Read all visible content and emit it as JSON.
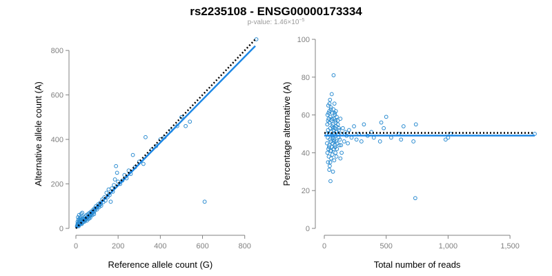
{
  "title": "rs2235108 - ENSG00000173334",
  "subtitle": "p-value: 1.46×10",
  "subtitle_exp": "−5",
  "colors": {
    "point": "#2a8bd0",
    "fit": "#1e88e5",
    "reference": "#000000",
    "axis": "#808080"
  },
  "chart_data": [
    {
      "type": "scatter",
      "xlabel": "Reference allele count (G)",
      "ylabel": "Alternative allele count (A)",
      "xlim": [
        0,
        850
      ],
      "ylim": [
        0,
        850
      ],
      "xticks": [
        0,
        200,
        400,
        600,
        800
      ],
      "yticks": [
        0,
        200,
        400,
        600,
        800
      ],
      "xtick_labels": [
        "0",
        "200",
        "400",
        "600",
        "800"
      ],
      "ytick_labels": [
        "0",
        "200",
        "400",
        "600",
        "800"
      ],
      "grid": false,
      "lines": [
        {
          "kind": "fit",
          "style": "solid",
          "x": [
            0,
            850
          ],
          "y": [
            0,
            820
          ]
        },
        {
          "kind": "reference",
          "style": "dotted",
          "x": [
            0,
            850
          ],
          "y": [
            0,
            850
          ]
        }
      ],
      "points": [
        [
          6,
          12
        ],
        [
          8,
          20
        ],
        [
          10,
          15
        ],
        [
          12,
          25
        ],
        [
          15,
          18
        ],
        [
          14,
          30
        ],
        [
          18,
          22
        ],
        [
          20,
          35
        ],
        [
          22,
          28
        ],
        [
          25,
          40
        ],
        [
          28,
          20
        ],
        [
          30,
          45
        ],
        [
          32,
          34
        ],
        [
          35,
          30
        ],
        [
          38,
          50
        ],
        [
          40,
          42
        ],
        [
          42,
          38
        ],
        [
          45,
          55
        ],
        [
          48,
          46
        ],
        [
          50,
          60
        ],
        [
          52,
          35
        ],
        [
          55,
          50
        ],
        [
          58,
          65
        ],
        [
          60,
          55
        ],
        [
          62,
          48
        ],
        [
          65,
          70
        ],
        [
          68,
          62
        ],
        [
          70,
          58
        ],
        [
          72,
          75
        ],
        [
          75,
          68
        ],
        [
          78,
          60
        ],
        [
          80,
          82
        ],
        [
          85,
          72
        ],
        [
          88,
          90
        ],
        [
          90,
          80
        ],
        [
          95,
          100
        ],
        [
          100,
          85
        ],
        [
          105,
          108
        ],
        [
          110,
          95
        ],
        [
          115,
          115
        ],
        [
          120,
          102
        ],
        [
          125,
          130
        ],
        [
          130,
          118
        ],
        [
          135,
          140
        ],
        [
          140,
          125
        ],
        [
          145,
          160
        ],
        [
          150,
          140
        ],
        [
          155,
          175
        ],
        [
          160,
          150
        ],
        [
          165,
          120
        ],
        [
          170,
          180
        ],
        [
          175,
          165
        ],
        [
          180,
          195
        ],
        [
          185,
          220
        ],
        [
          190,
          280
        ],
        [
          195,
          250
        ],
        [
          200,
          210
        ],
        [
          210,
          200
        ],
        [
          220,
          215
        ],
        [
          230,
          240
        ],
        [
          240,
          225
        ],
        [
          250,
          260
        ],
        [
          260,
          245
        ],
        [
          270,
          330
        ],
        [
          280,
          275
        ],
        [
          300,
          300
        ],
        [
          320,
          290
        ],
        [
          330,
          410
        ],
        [
          360,
          355
        ],
        [
          380,
          370
        ],
        [
          400,
          400
        ],
        [
          420,
          410
        ],
        [
          450,
          440
        ],
        [
          480,
          460
        ],
        [
          500,
          500
        ],
        [
          520,
          460
        ],
        [
          540,
          480
        ],
        [
          610,
          120
        ],
        [
          855,
          850
        ],
        [
          10,
          50
        ],
        [
          15,
          60
        ],
        [
          20,
          48
        ],
        [
          25,
          65
        ],
        [
          30,
          70
        ],
        [
          12,
          40
        ],
        [
          18,
          42
        ],
        [
          8,
          30
        ],
        [
          5,
          10
        ],
        [
          7,
          14
        ],
        [
          9,
          18
        ],
        [
          11,
          22
        ],
        [
          13,
          10
        ],
        [
          16,
          15
        ],
        [
          19,
          26
        ],
        [
          21,
          20
        ],
        [
          24,
          32
        ],
        [
          27,
          24
        ],
        [
          33,
          28
        ],
        [
          36,
          44
        ],
        [
          40,
          30
        ],
        [
          44,
          36
        ],
        [
          47,
          40
        ],
        [
          52,
          46
        ],
        [
          56,
          52
        ],
        [
          60,
          42
        ],
        [
          64,
          56
        ],
        [
          68,
          48
        ],
        [
          74,
          66
        ],
        [
          78,
          72
        ],
        [
          82,
          76
        ],
        [
          86,
          64
        ],
        [
          92,
          88
        ],
        [
          98,
          92
        ],
        [
          102,
          96
        ],
        [
          108,
          102
        ],
        [
          112,
          104
        ],
        [
          118,
          110
        ]
      ]
    },
    {
      "type": "scatter",
      "xlabel": "Total number of reads",
      "ylabel": "Percentage alternative (A)",
      "xlim": [
        0,
        1700
      ],
      "ylim": [
        0,
        100
      ],
      "xticks": [
        0,
        500,
        1000,
        1500
      ],
      "yticks": [
        0,
        20,
        40,
        60,
        80,
        100
      ],
      "xtick_labels": [
        "0",
        "500",
        "1,000",
        "1,500"
      ],
      "ytick_labels": [
        "0",
        "20",
        "40",
        "60",
        "80",
        "100"
      ],
      "grid": false,
      "lines": [
        {
          "kind": "fit",
          "style": "solid",
          "x": [
            0,
            1700
          ],
          "y": [
            49.1,
            49.1
          ]
        },
        {
          "kind": "reference",
          "style": "dotted",
          "x": [
            0,
            1700
          ],
          "y": [
            50.5,
            50.5
          ]
        }
      ],
      "points": [
        [
          20,
          50
        ],
        [
          22,
          45
        ],
        [
          24,
          55
        ],
        [
          25,
          40
        ],
        [
          26,
          60
        ],
        [
          28,
          48
        ],
        [
          30,
          52
        ],
        [
          30,
          35
        ],
        [
          32,
          65
        ],
        [
          33,
          42
        ],
        [
          35,
          58
        ],
        [
          36,
          38
        ],
        [
          38,
          50
        ],
        [
          40,
          62
        ],
        [
          40,
          44
        ],
        [
          42,
          56
        ],
        [
          44,
          33
        ],
        [
          45,
          47
        ],
        [
          46,
          68
        ],
        [
          48,
          53
        ],
        [
          50,
          41
        ],
        [
          50,
          59
        ],
        [
          52,
          46
        ],
        [
          54,
          64
        ],
        [
          55,
          37
        ],
        [
          56,
          51
        ],
        [
          58,
          57
        ],
        [
          60,
          43
        ],
        [
          60,
          71
        ],
        [
          62,
          49
        ],
        [
          64,
          54
        ],
        [
          65,
          39
        ],
        [
          66,
          61
        ],
        [
          68,
          45
        ],
        [
          70,
          55
        ],
        [
          70,
          30
        ],
        [
          72,
          48
        ],
        [
          74,
          63
        ],
        [
          75,
          42
        ],
        [
          76,
          52
        ],
        [
          78,
          58
        ],
        [
          80,
          36
        ],
        [
          80,
          47
        ],
        [
          82,
          66
        ],
        [
          84,
          50
        ],
        [
          85,
          44
        ],
        [
          86,
          60
        ],
        [
          88,
          53
        ],
        [
          90,
          40
        ],
        [
          90,
          57
        ],
        [
          92,
          49
        ],
        [
          94,
          62
        ],
        [
          95,
          46
        ],
        [
          96,
          54
        ],
        [
          98,
          38
        ],
        [
          100,
          51
        ],
        [
          100,
          59
        ],
        [
          105,
          45
        ],
        [
          110,
          55
        ],
        [
          115,
          48
        ],
        [
          120,
          52
        ],
        [
          125,
          47
        ],
        [
          130,
          58
        ],
        [
          135,
          44
        ],
        [
          140,
          50
        ],
        [
          150,
          53
        ],
        [
          160,
          46
        ],
        [
          170,
          51
        ],
        [
          180,
          49
        ],
        [
          190,
          45
        ],
        [
          200,
          52
        ],
        [
          220,
          48
        ],
        [
          240,
          54
        ],
        [
          260,
          47
        ],
        [
          280,
          50
        ],
        [
          300,
          46
        ],
        [
          320,
          55
        ],
        [
          350,
          49
        ],
        [
          380,
          51
        ],
        [
          400,
          48
        ],
        [
          450,
          46
        ],
        [
          460,
          56
        ],
        [
          480,
          53
        ],
        [
          500,
          59
        ],
        [
          540,
          48
        ],
        [
          600,
          50
        ],
        [
          620,
          47
        ],
        [
          640,
          54
        ],
        [
          720,
          46
        ],
        [
          735,
          16
        ],
        [
          740,
          55
        ],
        [
          980,
          47
        ],
        [
          1000,
          48
        ],
        [
          1020,
          50
        ],
        [
          1700,
          50
        ],
        [
          75,
          81
        ],
        [
          50,
          25
        ],
        [
          40,
          31
        ],
        [
          130,
          37
        ],
        [
          140,
          40
        ],
        [
          30,
          57
        ],
        [
          34,
          61
        ],
        [
          38,
          43
        ],
        [
          42,
          66
        ],
        [
          48,
          35
        ],
        [
          52,
          63
        ],
        [
          56,
          41
        ],
        [
          62,
          58
        ],
        [
          66,
          49
        ],
        [
          72,
          53
        ],
        [
          78,
          46
        ],
        [
          84,
          61
        ],
        [
          88,
          43
        ],
        [
          92,
          56
        ],
        [
          96,
          51
        ],
        [
          102,
          42
        ],
        [
          108,
          57
        ],
        [
          112,
          50
        ],
        [
          118,
          53
        ],
        [
          122,
          44
        ]
      ]
    }
  ]
}
